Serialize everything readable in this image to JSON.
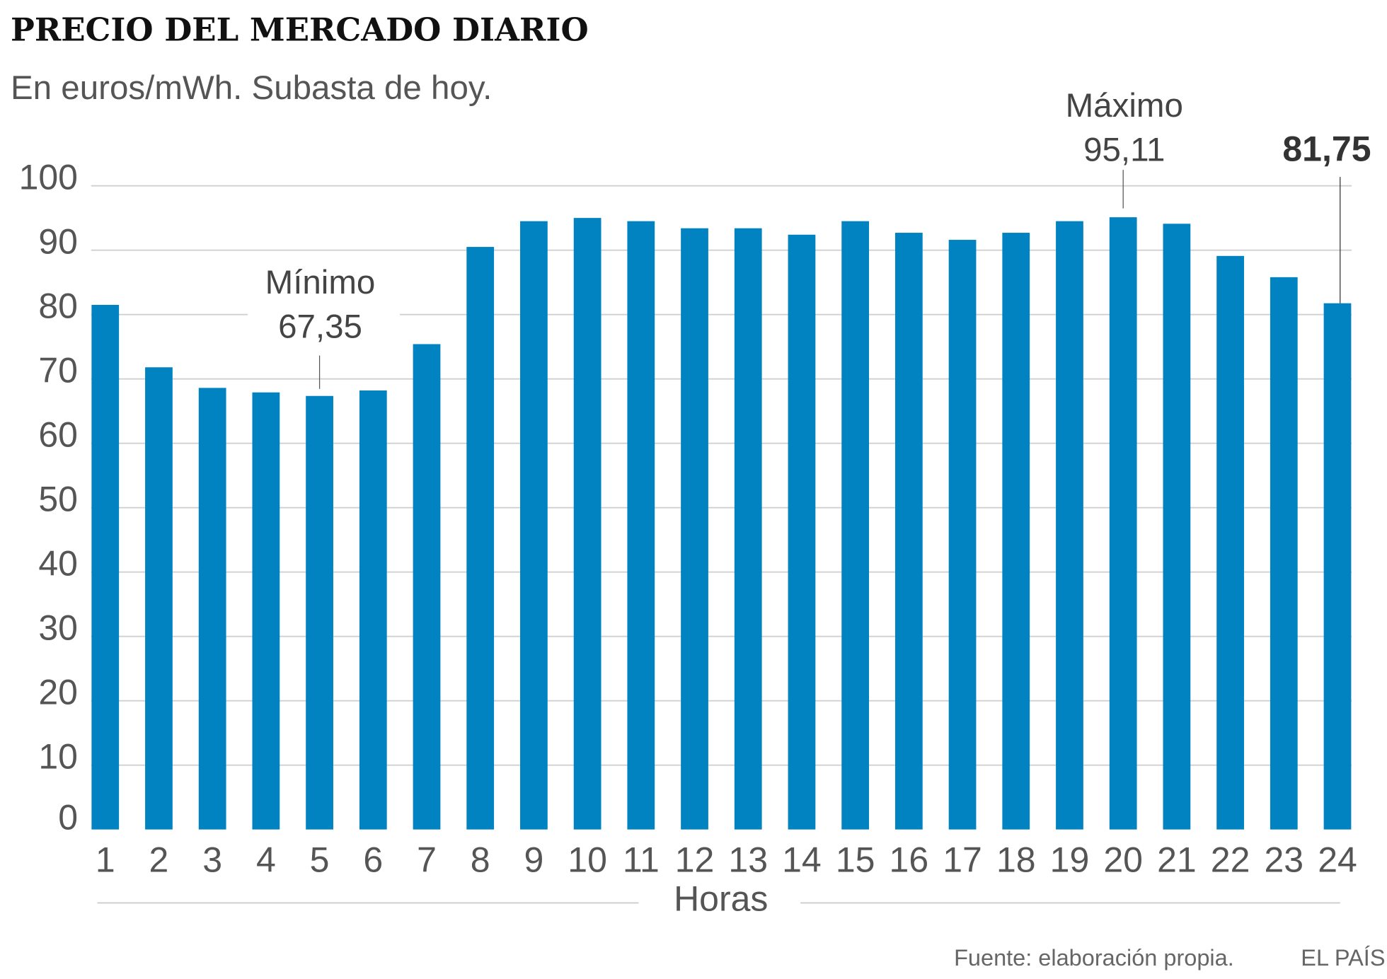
{
  "chart_data": {
    "type": "bar",
    "title": "PRECIO DEL MERCADO DIARIO",
    "subtitle": "En euros/mWh. Subasta de hoy.",
    "xlabel": "Horas",
    "ylabel": "",
    "ylim": [
      0,
      100
    ],
    "yticks": [
      0,
      10,
      20,
      30,
      40,
      50,
      60,
      70,
      80,
      90,
      100
    ],
    "grid": true,
    "bar_color": "#0083c0",
    "categories": [
      "1",
      "2",
      "3",
      "4",
      "5",
      "6",
      "7",
      "8",
      "9",
      "10",
      "11",
      "12",
      "13",
      "14",
      "15",
      "16",
      "17",
      "18",
      "19",
      "20",
      "21",
      "22",
      "23",
      "24"
    ],
    "values": [
      81.5,
      71.8,
      68.6,
      67.9,
      67.35,
      68.2,
      75.4,
      90.5,
      94.5,
      95.0,
      94.5,
      93.4,
      93.4,
      92.4,
      94.5,
      92.7,
      91.6,
      92.7,
      94.5,
      95.11,
      94.1,
      89.1,
      85.8,
      81.75
    ],
    "annotations": [
      {
        "label": "Mínimo",
        "value_text": "67,35",
        "category": "5"
      },
      {
        "label": "Máximo",
        "value_text": "95,11",
        "category": "20"
      },
      {
        "label": "",
        "value_text": "81,75",
        "category": "24"
      }
    ],
    "source": "Fuente: elaboración propia.",
    "credit": "EL PAÍS"
  }
}
